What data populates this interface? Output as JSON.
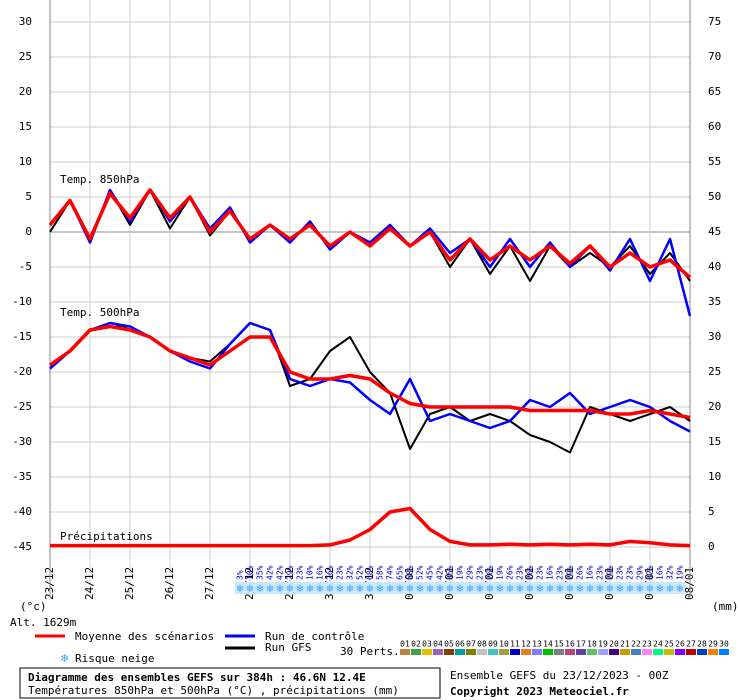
{
  "chart_data": {
    "type": "line",
    "title": "Diagramme des ensembles GEFS sur 384h : 46.6N 12.4E",
    "subtitle": "Températures 850hPa et 500hPa (°C) , précipitations (mm)",
    "run_info": "Ensemble GEFS du 23/12/2023 - 00Z",
    "copyright": "Copyright 2023 Meteociel.fr",
    "altitude": "Alt. 1629m",
    "ylabel": "(°c)",
    "y2label": "(mm)",
    "xlim": [
      0,
      384
    ],
    "xticks": [
      {
        "value": 0,
        "label": "23/12"
      },
      {
        "value": 24,
        "label": "24/12"
      },
      {
        "value": 48,
        "label": "25/12"
      },
      {
        "value": 72,
        "label": "26/12"
      },
      {
        "value": 96,
        "label": "27/12"
      },
      {
        "value": 120,
        "label": "28/12"
      },
      {
        "value": 144,
        "label": "29/12"
      },
      {
        "value": 168,
        "label": "30/12"
      },
      {
        "value": 192,
        "label": "31/12"
      },
      {
        "value": 216,
        "label": "01/01"
      },
      {
        "value": 240,
        "label": "02/01"
      },
      {
        "value": 264,
        "label": "03/01"
      },
      {
        "value": 288,
        "label": "04/01"
      },
      {
        "value": 312,
        "label": "05/01"
      },
      {
        "value": 336,
        "label": "06/01"
      },
      {
        "value": 360,
        "label": "07/01"
      },
      {
        "value": 384,
        "label": "08/01"
      }
    ],
    "ylim": [
      -45,
      30
    ],
    "yticks": [
      30,
      25,
      20,
      15,
      10,
      5,
      0,
      -5,
      -10,
      -15,
      -20,
      -25,
      -30,
      -35,
      -40,
      -45
    ],
    "y2lim": [
      0,
      75
    ],
    "y2ticks": [
      75,
      70,
      65,
      60,
      55,
      50,
      45,
      40,
      35,
      30,
      25,
      20,
      15,
      10,
      5,
      0
    ],
    "grid": true,
    "x": [
      0,
      12,
      24,
      36,
      48,
      60,
      72,
      84,
      96,
      108,
      120,
      132,
      144,
      156,
      168,
      180,
      192,
      204,
      216,
      228,
      240,
      252,
      264,
      276,
      288,
      300,
      312,
      324,
      336,
      348,
      360,
      372,
      384
    ],
    "legend": [
      {
        "name": "Moyenne des scénarios",
        "color": "#ff0000"
      },
      {
        "name": "Run de contrôle",
        "color": "#0000ff"
      },
      {
        "name": "Run GFS",
        "color": "#000000"
      }
    ],
    "groups": [
      {
        "label": "Temp. 850hPa",
        "series": [
          {
            "color": "#000000",
            "values": [
              0,
              4.5,
              -1.5,
              6,
              1,
              6,
              0.5,
              5,
              -0.5,
              3,
              -1,
              1,
              -1,
              1,
              -2,
              0,
              -2,
              0.5,
              -2,
              0,
              -5,
              -1,
              -6,
              -2,
              -7,
              -2,
              -5,
              -3,
              -5,
              -2,
              -6,
              -3,
              -7
            ]
          },
          {
            "color": "#0000ff",
            "values": [
              1,
              4.5,
              -1.5,
              6,
              1.5,
              6,
              1.5,
              5,
              0.5,
              3.5,
              -1.5,
              1,
              -1.5,
              1.5,
              -2.5,
              0,
              -1.5,
              1,
              -2,
              0.5,
              -3,
              -1,
              -5,
              -1,
              -5,
              -1.5,
              -5,
              -2,
              -5.5,
              -1,
              -7,
              -1,
              -12
            ]
          },
          {
            "color": "#ff0000",
            "values": [
              1,
              4.5,
              -1,
              5.5,
              2,
              6,
              2,
              5,
              0,
              3,
              -1,
              1,
              -1,
              1,
              -2,
              0,
              -2,
              0.5,
              -2,
              0,
              -4,
              -1,
              -4,
              -2,
              -4,
              -2,
              -4.5,
              -2,
              -5,
              -3,
              -5,
              -4,
              -6.5
            ]
          }
        ]
      },
      {
        "label": "Temp. 500hPa",
        "series": [
          {
            "color": "#000000",
            "values": [
              -19,
              -17,
              -14,
              -13.5,
              -13.5,
              -15,
              -17,
              -18,
              -18.5,
              -16,
              -13,
              -14,
              -22,
              -21,
              -17,
              -15,
              -20,
              -23,
              -31,
              -26,
              -25,
              -27,
              -26,
              -27,
              -29,
              -30,
              -31.5,
              -25,
              -26,
              -27,
              -26,
              -25,
              -27
            ]
          },
          {
            "color": "#0000ff",
            "values": [
              -19.5,
              -17,
              -14,
              -13,
              -13.5,
              -15,
              -17,
              -18.5,
              -19.5,
              -16,
              -13,
              -14,
              -21,
              -22,
              -21,
              -21.5,
              -24,
              -26,
              -21,
              -27,
              -26,
              -27,
              -28,
              -27,
              -24,
              -25,
              -23,
              -26,
              -25,
              -24,
              -25,
              -27,
              -28.5
            ]
          },
          {
            "color": "#ff0000",
            "values": [
              -19,
              -17,
              -14,
              -13.5,
              -14,
              -15,
              -17,
              -18,
              -19,
              -17,
              -15,
              -15,
              -20,
              -21,
              -21,
              -20.5,
              -21,
              -23,
              -24.5,
              -25,
              -25,
              -25,
              -25,
              -25,
              -25.5,
              -25.5,
              -25.5,
              -25.5,
              -26,
              -26,
              -25.5,
              -26,
              -26.5
            ]
          }
        ]
      },
      {
        "label": "Précipitations",
        "series": [
          {
            "color": "#ff0000",
            "axis": "y2",
            "values": [
              0.2,
              0.2,
              0.2,
              0.2,
              0.2,
              0.2,
              0.2,
              0.2,
              0.2,
              0.2,
              0.2,
              0.2,
              0.2,
              0.2,
              0.3,
              1,
              2.5,
              5,
              5.5,
              2.5,
              0.8,
              0.3,
              0.3,
              0.4,
              0.3,
              0.4,
              0.3,
              0.4,
              0.3,
              0.8,
              0.6,
              0.3,
              0.2
            ]
          }
        ]
      }
    ],
    "snow_risk": {
      "label": "Risque neige",
      "x": [
        114,
        120,
        126,
        132,
        138,
        144,
        150,
        156,
        162,
        168,
        174,
        180,
        186,
        192,
        198,
        204,
        210,
        216,
        222,
        228,
        234,
        240,
        246,
        252,
        258,
        264,
        270,
        276,
        282,
        288,
        294,
        300,
        306,
        312,
        318,
        324,
        330,
        336,
        342,
        348,
        354,
        360,
        366,
        372,
        378
      ],
      "values": [
        3,
        10,
        35,
        42,
        42,
        29,
        23,
        10,
        16,
        26,
        23,
        32,
        52,
        68,
        58,
        74,
        65,
        58,
        52,
        45,
        42,
        35,
        19,
        29,
        23,
        26,
        19,
        26,
        23,
        26,
        23,
        16,
        23,
        29,
        26,
        16,
        23,
        29,
        23,
        23,
        29,
        32,
        16,
        32,
        19
      ],
      "value_labels": [
        "3%",
        "10%",
        "35%",
        "42%",
        "42%",
        "29%",
        "23%",
        "10%",
        "16%",
        "26%",
        "23%",
        "32%",
        "52%",
        "68%",
        "58%",
        "74%",
        "65%",
        "58%",
        "52%",
        "45%",
        "42%",
        "35%",
        "19%",
        "29%",
        "23%",
        "26%",
        "19%",
        "26%",
        "23%",
        "26%",
        "23%",
        "16%",
        "23%",
        "29%",
        "26%",
        "16%",
        "23%",
        "29%",
        "23%",
        "23%",
        "29%",
        "32%",
        "16%",
        "32%",
        "19%"
      ]
    },
    "perturbations_label": "30 Perts.",
    "perturbations": [
      {
        "name": "01",
        "color": "#c08040"
      },
      {
        "name": "02",
        "color": "#40a040"
      },
      {
        "name": "03",
        "color": "#e0c000"
      },
      {
        "name": "04",
        "color": "#a060c0"
      },
      {
        "name": "05",
        "color": "#804000"
      },
      {
        "name": "06",
        "color": "#00a0a0"
      },
      {
        "name": "07",
        "color": "#808000"
      },
      {
        "name": "08",
        "color": "#c0c0c0"
      },
      {
        "name": "09",
        "color": "#40c0c0"
      },
      {
        "name": "10",
        "color": "#a0a040"
      },
      {
        "name": "11",
        "color": "#0000c0"
      },
      {
        "name": "12",
        "color": "#e08020"
      },
      {
        "name": "13",
        "color": "#8080ff"
      },
      {
        "name": "14",
        "color": "#00c000"
      },
      {
        "name": "15",
        "color": "#808080"
      },
      {
        "name": "16",
        "color": "#c04080"
      },
      {
        "name": "17",
        "color": "#6040a0"
      },
      {
        "name": "18",
        "color": "#60c060"
      },
      {
        "name": "19",
        "color": "#a0a0ff"
      },
      {
        "name": "20",
        "color": "#400080"
      },
      {
        "name": "21",
        "color": "#c0a000"
      },
      {
        "name": "22",
        "color": "#4080c0"
      },
      {
        "name": "23",
        "color": "#ff80ff"
      },
      {
        "name": "24",
        "color": "#00ff80"
      },
      {
        "name": "25",
        "color": "#c0c000"
      },
      {
        "name": "26",
        "color": "#8000ff"
      },
      {
        "name": "27",
        "color": "#c00000"
      },
      {
        "name": "28",
        "color": "#0040c0"
      },
      {
        "name": "29",
        "color": "#ff8000"
      },
      {
        "name": "30",
        "color": "#0080ff"
      }
    ]
  }
}
